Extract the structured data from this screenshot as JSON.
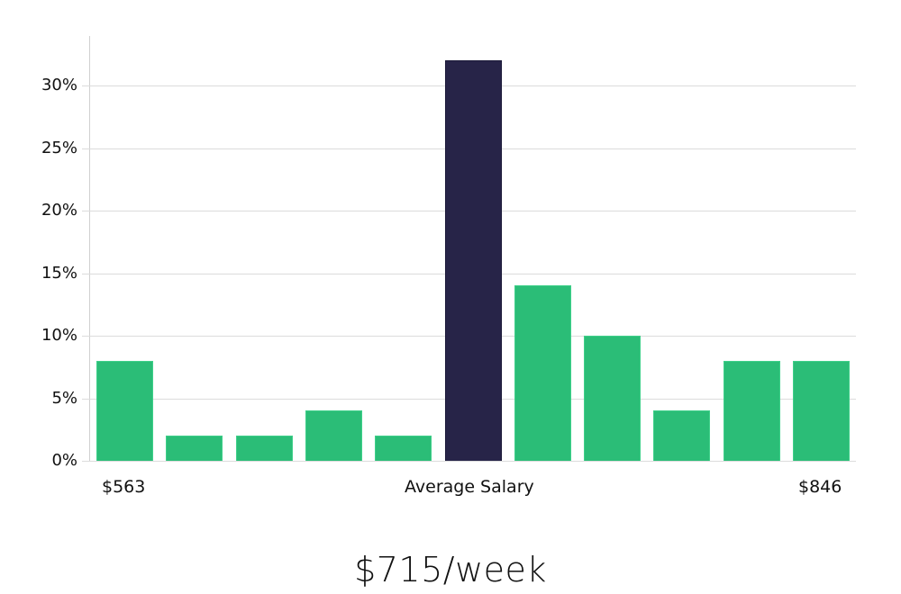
{
  "chart_data": {
    "type": "bar",
    "title": "",
    "xlabel": "Average Salary",
    "ylabel": "",
    "x_tick_labels": {
      "left": "$563",
      "center": "Average Salary",
      "right": "$846"
    },
    "y_ticks": [
      "0%",
      "5%",
      "10%",
      "15%",
      "20%",
      "25%",
      "30%"
    ],
    "ylim": [
      0,
      34
    ],
    "grid": true,
    "legend": null,
    "categories": [
      "1",
      "2",
      "3",
      "4",
      "5",
      "6",
      "7",
      "8",
      "9",
      "10",
      "11"
    ],
    "values": [
      8,
      2,
      2,
      4,
      2,
      32,
      14,
      10,
      4,
      8,
      8
    ],
    "highlight_index": 5,
    "colors": {
      "bar": "#2bbd77",
      "highlight": "#272448",
      "grid": "#dcdcdc"
    }
  },
  "axis": {
    "y_labels": [
      "0%",
      "5%",
      "10%",
      "15%",
      "20%",
      "25%",
      "30%"
    ],
    "x_left": "$563",
    "x_center": "Average Salary",
    "x_right": "$846"
  },
  "summary": {
    "value": "$715/week"
  }
}
